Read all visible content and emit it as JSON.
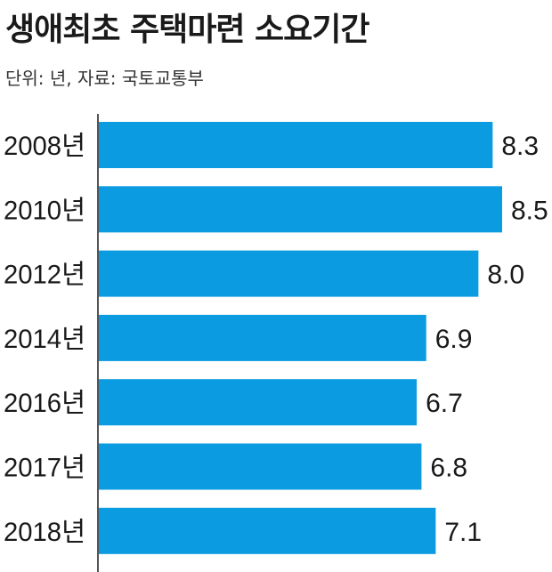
{
  "title": "생애최초 주택마련 소요기간",
  "subtitle": "단위: 년, 자료: 국토교통부",
  "colors": {
    "bar": "#0b9be0",
    "axis": "#555555",
    "text": "#1a1a1a"
  },
  "chart_data": {
    "type": "bar",
    "orientation": "horizontal",
    "title": "생애최초 주택마련 소요기간",
    "subtitle": "단위: 년, 자료: 국토교통부",
    "categories": [
      "2008년",
      "2010년",
      "2012년",
      "2014년",
      "2016년",
      "2017년",
      "2018년"
    ],
    "values": [
      8.3,
      8.5,
      8.0,
      6.9,
      6.7,
      6.8,
      7.1
    ],
    "value_labels": [
      "8.3",
      "8.5",
      "8.0",
      "6.9",
      "6.7",
      "6.8",
      "7.1"
    ],
    "xlim": [
      0,
      8.5
    ],
    "grid": false,
    "legend": "none"
  }
}
